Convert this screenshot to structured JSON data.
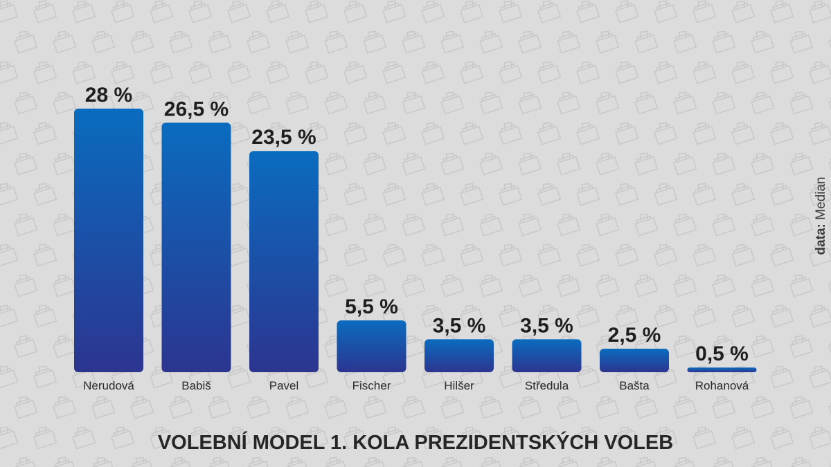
{
  "chart_data": {
    "type": "bar",
    "title": "VOLEBNÍ MODEL 1. KOLA PREZIDENTSKÝCH VOLEB",
    "categories": [
      "Nerudová",
      "Babiš",
      "Pavel",
      "Fischer",
      "Hilšer",
      "Středula",
      "Bašta",
      "Rohanová"
    ],
    "values": [
      28,
      26.5,
      23.5,
      5.5,
      3.5,
      3.5,
      2.5,
      0.5
    ],
    "value_labels": [
      "28 %",
      "26,5 %",
      "23,5 %",
      "5,5 %",
      "3,5 %",
      "3,5 %",
      "2,5 %",
      "0,5 %"
    ],
    "unit": "%",
    "ylim": [
      0,
      28
    ],
    "grid": false,
    "legend": "none",
    "colors": {
      "bar_top": "#0a6cbf",
      "bar_bottom": "#2c3590",
      "background": "#dcdcdc"
    }
  },
  "source": {
    "prefix": "data:",
    "name": "Median"
  }
}
